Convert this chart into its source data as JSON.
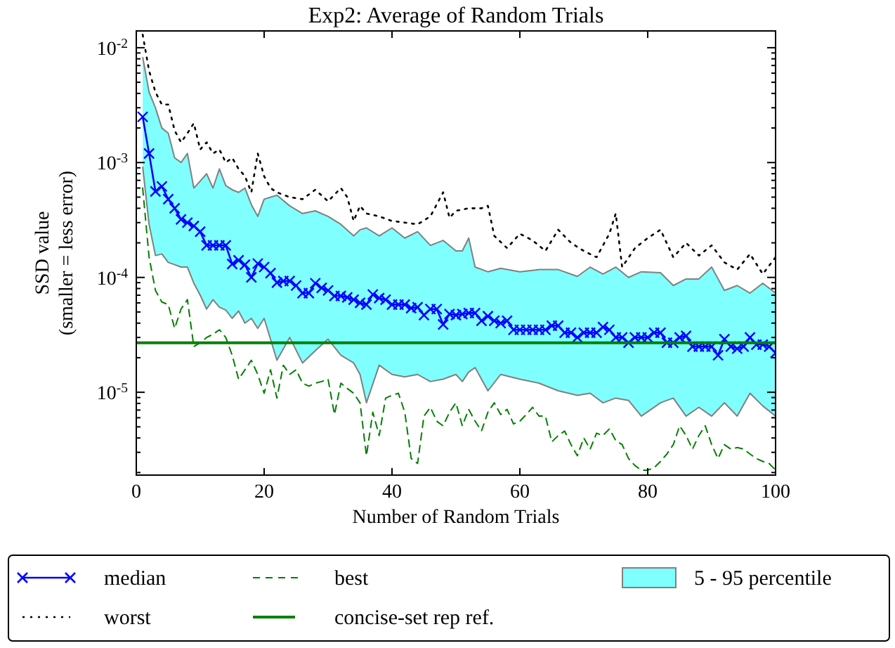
{
  "chart_data": {
    "type": "line",
    "title": "Exp2: Average of Random Trials",
    "xlabel": "Number of Random Trials",
    "ylabel": "SSD value\n(smaller = less error)",
    "log": "y",
    "grid": false,
    "legend": "bottom",
    "xlim": [
      0,
      100
    ],
    "xticks": [
      0,
      20,
      40,
      60,
      80,
      100
    ],
    "ylim": [
      1.9e-06,
      0.014
    ],
    "yticks": [
      {
        "value": 2e-06,
        "label": null
      },
      {
        "value": 3e-06,
        "label": null
      },
      {
        "value": 4e-06,
        "label": null
      },
      {
        "value": 5e-06,
        "label": null
      },
      {
        "value": 6e-06,
        "label": null
      },
      {
        "value": 7e-06,
        "label": null
      },
      {
        "value": 8e-06,
        "label": null
      },
      {
        "value": 9e-06,
        "label": null
      },
      {
        "value": 1e-05,
        "label": "10$^{-5}$"
      },
      {
        "value": 2e-05,
        "label": null
      },
      {
        "value": 3e-05,
        "label": null
      },
      {
        "value": 4e-05,
        "label": null
      },
      {
        "value": 5e-05,
        "label": null
      },
      {
        "value": 6e-05,
        "label": null
      },
      {
        "value": 7e-05,
        "label": null
      },
      {
        "value": 8e-05,
        "label": null
      },
      {
        "value": 9e-05,
        "label": null
      },
      {
        "value": 0.0001,
        "label": "10$^{-4}$"
      },
      {
        "value": 0.0002,
        "label": null
      },
      {
        "value": 0.0003,
        "label": null
      },
      {
        "value": 0.0004,
        "label": null
      },
      {
        "value": 0.0005,
        "label": null
      },
      {
        "value": 0.0006,
        "label": null
      },
      {
        "value": 0.0007,
        "label": null
      },
      {
        "value": 0.0008,
        "label": null
      },
      {
        "value": 0.0009,
        "label": null
      },
      {
        "value": 0.001,
        "label": "10$^{-3}$"
      },
      {
        "value": 0.002,
        "label": null
      },
      {
        "value": 0.003,
        "label": null
      },
      {
        "value": 0.004,
        "label": null
      },
      {
        "value": 0.005,
        "label": null
      },
      {
        "value": 0.006,
        "label": null
      },
      {
        "value": 0.007,
        "label": null
      },
      {
        "value": 0.008,
        "label": null
      },
      {
        "value": 0.009,
        "label": null
      },
      {
        "value": 0.01,
        "label": "10$^{-2}$"
      }
    ],
    "series": [
      {
        "name": "median",
        "color": "#0000ff",
        "marker": "cross",
        "line_style": "solid",
        "x": [
          1,
          2,
          3,
          4,
          5,
          6,
          7,
          8,
          9,
          10,
          11,
          12,
          13,
          14,
          15,
          16,
          17,
          18,
          19,
          20,
          21,
          22,
          23,
          24,
          25,
          26,
          27,
          28,
          29,
          30,
          31,
          32,
          33,
          34,
          35,
          36,
          37,
          38,
          39,
          40,
          41,
          42,
          43,
          44,
          45,
          46,
          47,
          48,
          49,
          50,
          51,
          52,
          53,
          54,
          55,
          56,
          57,
          58,
          59,
          60,
          61,
          62,
          63,
          64,
          65,
          66,
          67,
          68,
          69,
          70,
          71,
          72,
          73,
          74,
          75,
          76,
          77,
          78,
          79,
          80,
          81,
          82,
          83,
          84,
          85,
          86,
          87,
          88,
          89,
          90,
          91,
          92,
          93,
          94,
          95,
          96,
          97,
          98,
          99,
          100
        ],
        "values": [
          0.0025,
          0.0012,
          0.00056,
          0.00062,
          0.00048,
          0.0004,
          0.00032,
          0.0003,
          0.00028,
          0.00025,
          0.00019,
          0.00019,
          0.00019,
          0.00019,
          0.000131,
          0.000141,
          0.000129,
          0.0001,
          0.000132,
          0.000123,
          0.000109,
          9e-05,
          9.3e-05,
          9.3e-05,
          8.5e-05,
          7.3e-05,
          7.3e-05,
          8.9e-05,
          8.1e-05,
          7.7e-05,
          6.9e-05,
          6.9e-05,
          6.7e-05,
          6.4e-05,
          6e-05,
          5.8e-05,
          7.1e-05,
          6.6e-05,
          6.4e-05,
          5.8e-05,
          5.8e-05,
          5.8e-05,
          5.4e-05,
          5.5e-05,
          4.7e-05,
          5.3e-05,
          5.3e-05,
          3.9e-05,
          4.8e-05,
          4.7e-05,
          4.8e-05,
          4.9e-05,
          4.9e-05,
          4.2e-05,
          4.6e-05,
          4.2e-05,
          4e-05,
          4.2e-05,
          3.5e-05,
          3.5e-05,
          3.5e-05,
          3.5e-05,
          3.5e-05,
          3.5e-05,
          3.8e-05,
          3.8e-05,
          3.3e-05,
          3.3e-05,
          3e-05,
          3.3e-05,
          3.3e-05,
          3.3e-05,
          3.7e-05,
          3.5e-05,
          3e-05,
          3e-05,
          2.7e-05,
          3e-05,
          3e-05,
          3e-05,
          3.3e-05,
          3.3e-05,
          2.7e-05,
          2.7e-05,
          3e-05,
          3.1e-05,
          2.5e-05,
          2.5e-05,
          2.5e-05,
          2.5e-05,
          2.1e-05,
          2.9e-05,
          2.5e-05,
          2.4e-05,
          2.5e-05,
          3e-05,
          2.6e-05,
          2.6e-05,
          2.5e-05,
          2.2e-05
        ]
      },
      {
        "name": "worst",
        "color": "#000000",
        "marker": "none",
        "line_style": "dotted",
        "x": [
          1,
          2,
          3,
          4,
          5,
          6,
          7,
          8,
          9,
          10,
          11,
          12,
          13,
          14,
          15,
          16,
          17,
          18,
          19,
          20,
          21,
          22,
          24,
          26,
          28,
          30,
          32,
          33,
          34,
          35,
          36,
          38,
          40,
          42,
          44,
          46,
          48,
          49,
          50,
          52,
          54,
          55,
          56,
          58,
          60,
          62,
          64,
          66,
          68,
          70,
          72,
          74,
          75,
          76,
          78,
          80,
          82,
          84,
          86,
          88,
          90,
          92,
          94,
          96,
          98,
          100
        ],
        "values": [
          0.013,
          0.0063,
          0.0041,
          0.0032,
          0.0032,
          0.0019,
          0.0015,
          0.0018,
          0.0022,
          0.0013,
          0.0015,
          0.0012,
          0.0013,
          0.001,
          0.0011,
          0.00088,
          0.00076,
          0.00055,
          0.0012,
          0.00076,
          0.0006,
          0.00055,
          0.0005,
          0.00048,
          0.00058,
          0.00046,
          0.0006,
          0.0005,
          0.00031,
          0.00042,
          0.00036,
          0.00034,
          0.00031,
          0.0003,
          0.00029,
          0.00034,
          0.00055,
          0.00033,
          0.00038,
          0.0004,
          0.0004,
          0.00042,
          0.00023,
          0.00018,
          0.00024,
          0.00021,
          0.00017,
          0.00026,
          0.0002,
          0.00017,
          0.00015,
          0.00024,
          0.00036,
          0.000123,
          0.00018,
          0.00022,
          0.00026,
          0.00015,
          0.0002,
          0.000155,
          0.00019,
          0.000135,
          0.000117,
          0.00016,
          0.000107,
          0.00015
        ]
      },
      {
        "name": "best",
        "color": "#008000",
        "marker": "none",
        "line_style": "dashed",
        "x": [
          1,
          2,
          3,
          4,
          5,
          6,
          7,
          8,
          9,
          10,
          11,
          12,
          13,
          14,
          15,
          16,
          17,
          18,
          19,
          20,
          21,
          22,
          23,
          24,
          25,
          26,
          27,
          28,
          29,
          30,
          31,
          32,
          33,
          34,
          35,
          36,
          37,
          38,
          39,
          40,
          41,
          42,
          43,
          44,
          45,
          46,
          47,
          48,
          49,
          50,
          51,
          52,
          53,
          54,
          55,
          56,
          57,
          58,
          59,
          60,
          61,
          62,
          63,
          64,
          65,
          66,
          67,
          68,
          69,
          70,
          71,
          72,
          73,
          74,
          75,
          76,
          77,
          78,
          79,
          80,
          81,
          82,
          83,
          84,
          85,
          86,
          87,
          88,
          89,
          90,
          91,
          92,
          93,
          94,
          95,
          96,
          97,
          98,
          99,
          100
        ],
        "values": [
          0.0006,
          0.00015,
          7.7e-05,
          6.1e-05,
          5.8e-05,
          3.6e-05,
          5.3e-05,
          6.4e-05,
          2.5e-05,
          2.7e-05,
          3e-05,
          3.2e-05,
          3.5e-05,
          3e-05,
          2.1e-05,
          1.3e-05,
          1.57e-05,
          1.9e-05,
          1.43e-05,
          9.8e-06,
          1.57e-05,
          8.9e-06,
          1.72e-05,
          1.43e-05,
          1.57e-05,
          1.2e-05,
          1.13e-05,
          1.2e-05,
          1.24e-05,
          1.3e-05,
          6.4e-06,
          1.2e-05,
          1.08e-05,
          9.8e-06,
          8.1e-06,
          2.8e-06,
          6.7e-06,
          4.2e-06,
          8.9e-06,
          9.4e-06,
          9.8e-06,
          6.7e-06,
          2.65e-06,
          2.4e-06,
          6.2e-06,
          7.4e-06,
          5.6e-06,
          5.1e-06,
          6.7e-06,
          8.1e-06,
          5.1e-06,
          7.1e-06,
          5.6e-06,
          4.6e-06,
          6.7e-06,
          8.1e-06,
          6.4e-06,
          7.1e-06,
          5.3e-06,
          5.6e-06,
          6.4e-06,
          7.4e-06,
          6.2e-06,
          6.2e-06,
          3.7e-06,
          4.2e-06,
          4.6e-06,
          3.5e-06,
          2.8e-06,
          4e-06,
          3.2e-06,
          4.4e-06,
          4.2e-06,
          4.8e-06,
          3.8e-06,
          3.5e-06,
          2.65e-06,
          2.3e-06,
          2.1e-06,
          2.1e-06,
          2.2e-06,
          2.5e-06,
          2.9e-06,
          3.5e-06,
          5.1e-06,
          4.2e-06,
          3.2e-06,
          4.2e-06,
          5.1e-06,
          3.5e-06,
          2.65e-06,
          3.5e-06,
          3.2e-06,
          3.3e-06,
          3.2e-06,
          2.9e-06,
          2.65e-06,
          2.5e-06,
          2.4e-06,
          2.1e-06
        ]
      },
      {
        "name": "5 - 95 percentile",
        "type": "area",
        "color": "#80ffff",
        "x": [
          1,
          2,
          3,
          4,
          5,
          6,
          7,
          8,
          9,
          10,
          11,
          12,
          13,
          14,
          15,
          16,
          17,
          18,
          19,
          20,
          22,
          24,
          26,
          28,
          30,
          32,
          34,
          35,
          36,
          38,
          40,
          42,
          44,
          46,
          48,
          50,
          51,
          52,
          53,
          55,
          57,
          60,
          63,
          66,
          69,
          71,
          73,
          75,
          77,
          79,
          82,
          84,
          86,
          88,
          90,
          92,
          94,
          96,
          98,
          100
        ],
        "values": [
          0.0083,
          0.0041,
          0.003,
          0.002,
          0.0018,
          0.0011,
          0.001,
          0.0012,
          0.0006,
          0.00069,
          0.0008,
          0.0006,
          0.00088,
          0.00063,
          0.00058,
          0.00055,
          0.0006,
          0.00043,
          0.00034,
          0.00048,
          0.00052,
          0.00042,
          0.00036,
          0.00038,
          0.00034,
          0.00029,
          0.00023,
          0.00026,
          0.00027,
          0.00023,
          0.00027,
          0.00022,
          0.00025,
          0.00019,
          0.00021,
          0.00017,
          0.00017,
          0.00022,
          0.000123,
          0.000112,
          0.00012,
          0.000112,
          0.000117,
          0.000117,
          0.000102,
          0.000123,
          0.000107,
          0.000123,
          0.0001,
          0.000112,
          0.00011,
          8.5e-05,
          9.7e-05,
          9.7e-05,
          0.000123,
          7.7e-05,
          8.5e-05,
          7.3e-05,
          8.9e-05,
          7.3e-05
        ],
        "line_style": "solid"
      },
      {
        "type": "area",
        "color": "#ffffff",
        "line_style": "solid",
        "x": [
          1,
          2,
          3,
          4,
          5,
          6,
          7,
          8,
          9,
          10,
          11,
          12,
          13,
          14,
          15,
          16,
          17,
          18,
          19,
          20,
          22,
          24,
          26,
          28,
          30,
          32,
          34,
          35,
          36,
          38,
          40,
          42,
          44,
          46,
          48,
          50,
          51,
          52,
          53,
          55,
          57,
          60,
          63,
          66,
          69,
          71,
          73,
          75,
          77,
          79,
          82,
          84,
          86,
          88,
          90,
          92,
          94,
          96,
          98,
          100
        ],
        "values": [
          0.00092,
          0.00029,
          0.000155,
          0.00016,
          0.000135,
          0.000129,
          0.000123,
          0.000123,
          8.9e-05,
          7e-05,
          5.3e-05,
          6.4e-05,
          5.5e-05,
          5.2e-05,
          4.4e-05,
          5.1e-05,
          4e-05,
          4.4e-05,
          3.6e-05,
          4.4e-05,
          1.9e-05,
          3e-05,
          1.8e-05,
          2.3e-05,
          2.9e-05,
          2.1e-05,
          1.8e-05,
          1.43e-05,
          8.1e-06,
          1.72e-05,
          1.43e-05,
          1.36e-05,
          1.43e-05,
          1.24e-05,
          1.3e-05,
          1.43e-05,
          1.24e-05,
          1.5e-05,
          1.64e-05,
          1.03e-05,
          1.43e-05,
          1.3e-05,
          1.2e-05,
          1.03e-05,
          9.4e-06,
          9.8e-06,
          8.1e-06,
          8.9e-06,
          8.5e-06,
          6.2e-06,
          8.1e-06,
          8.9e-06,
          6.2e-06,
          7.4e-06,
          6.2e-06,
          8.1e-06,
          6.2e-06,
          9.8e-06,
          7.6e-06,
          6.2e-06
        ]
      }
    ],
    "ref_lines": [
      {
        "axis": "y",
        "value": 2.7e-05,
        "label": "concise-set rep ref.",
        "color": "#008000",
        "line_style": "solid"
      }
    ]
  }
}
